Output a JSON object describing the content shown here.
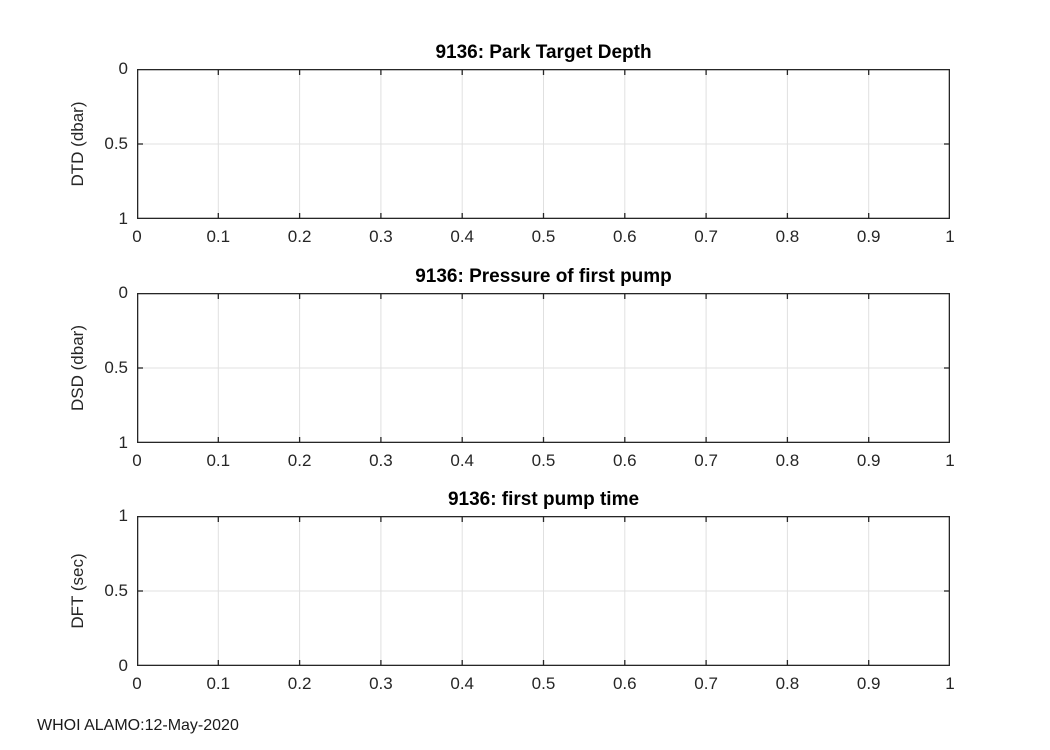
{
  "figure": {
    "footer": "WHOI ALAMO:12-May-2020",
    "background": "#ffffff"
  },
  "style": {
    "axis_color": "#262626",
    "grid_color": "#e0e0e0",
    "title_color": "#000000"
  },
  "chart_data": [
    {
      "type": "line",
      "title": "9136: Park Target Depth",
      "xlabel": "",
      "ylabel": "DTD (dbar)",
      "series": [],
      "x": [],
      "xlim": [
        0,
        1
      ],
      "ylim": [
        1,
        0
      ],
      "y_axis_reversed": true,
      "grid": true,
      "legend": null,
      "x_ticks": [
        "0",
        "0.1",
        "0.2",
        "0.3",
        "0.4",
        "0.5",
        "0.6",
        "0.7",
        "0.8",
        "0.9",
        "1"
      ],
      "y_ticks_top_to_bottom": [
        "0",
        "0.5",
        "1"
      ]
    },
    {
      "type": "line",
      "title": "9136: Pressure of first pump",
      "xlabel": "",
      "ylabel": "DSD (dbar)",
      "series": [],
      "x": [],
      "xlim": [
        0,
        1
      ],
      "ylim": [
        1,
        0
      ],
      "y_axis_reversed": true,
      "grid": true,
      "legend": null,
      "x_ticks": [
        "0",
        "0.1",
        "0.2",
        "0.3",
        "0.4",
        "0.5",
        "0.6",
        "0.7",
        "0.8",
        "0.9",
        "1"
      ],
      "y_ticks_top_to_bottom": [
        "0",
        "0.5",
        "1"
      ]
    },
    {
      "type": "line",
      "title": "9136: first pump time",
      "xlabel": "",
      "ylabel": "DFT (sec)",
      "series": [],
      "x": [],
      "xlim": [
        0,
        1
      ],
      "ylim": [
        0,
        1
      ],
      "y_axis_reversed": false,
      "grid": true,
      "legend": null,
      "x_ticks": [
        "0",
        "0.1",
        "0.2",
        "0.3",
        "0.4",
        "0.5",
        "0.6",
        "0.7",
        "0.8",
        "0.9",
        "1"
      ],
      "y_ticks_top_to_bottom": [
        "1",
        "0.5",
        "0"
      ]
    }
  ]
}
